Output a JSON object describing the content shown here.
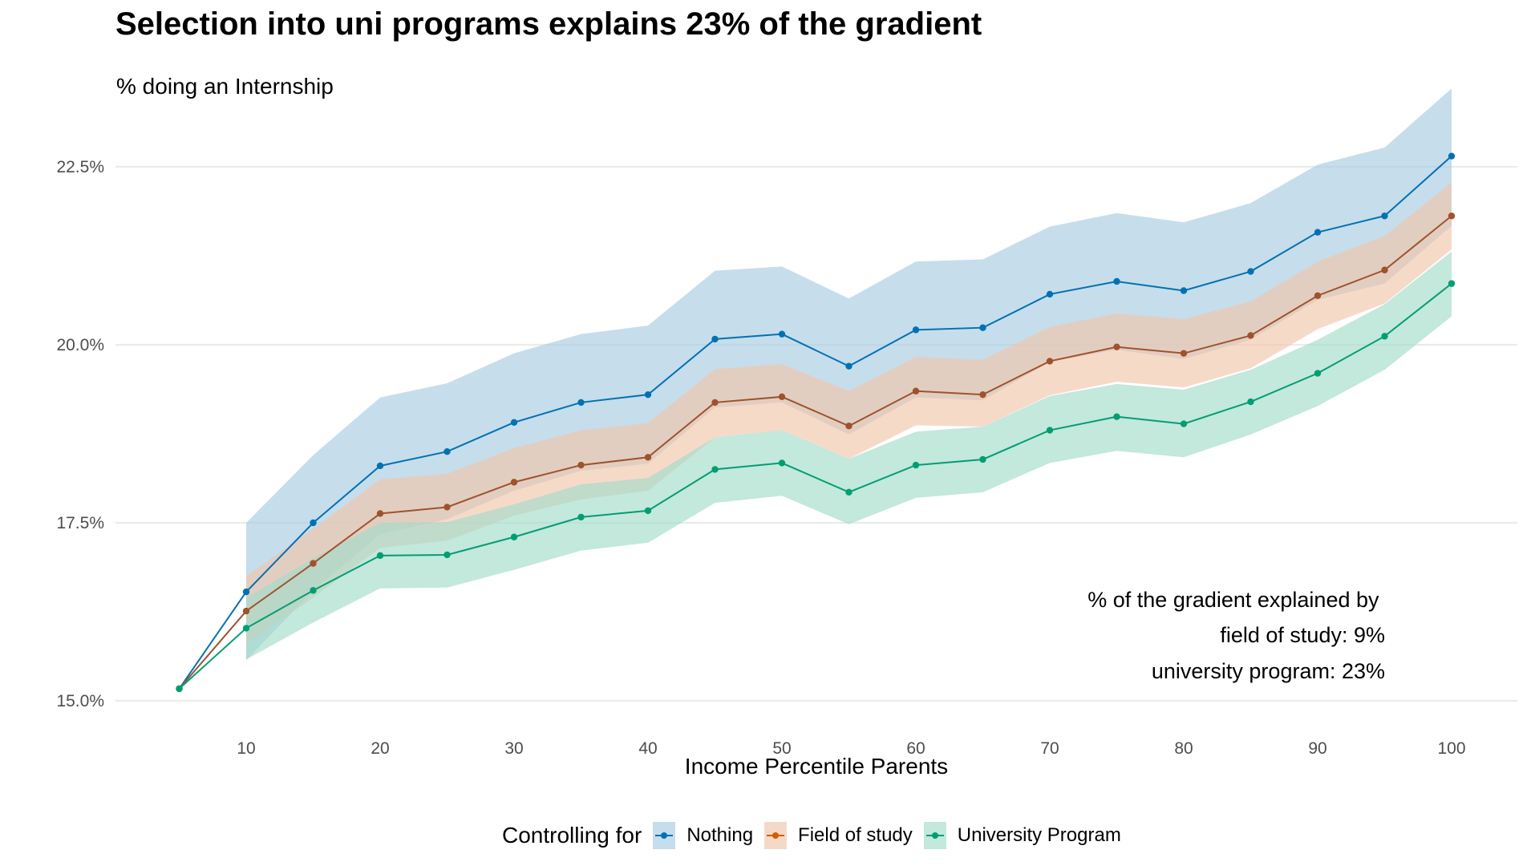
{
  "header": {
    "title": "Selection into uni programs explains 23% of the gradient",
    "subtitle": "% doing an Internship"
  },
  "annotation": {
    "lines": [
      "% of the gradient explained by ",
      "field of study: 9%",
      "university program: 23%"
    ]
  },
  "legend": {
    "title": "Controlling for",
    "items": [
      {
        "label": "Nothing",
        "color": "#0072B2",
        "fill": "#c5dded"
      },
      {
        "label": "Field of study",
        "color": "#D55E00",
        "fill": "#f5d9c8"
      },
      {
        "label": "University Program",
        "color": "#009E73",
        "fill": "#c3e8dc"
      }
    ]
  },
  "chart_data": {
    "type": "line",
    "title": "Selection into uni programs explains 23% of the gradient",
    "subtitle": "% doing an Internship",
    "xlabel": "Income Percentile Parents",
    "ylabel": "",
    "x": [
      5,
      10,
      15,
      20,
      25,
      30,
      35,
      40,
      45,
      50,
      55,
      60,
      65,
      70,
      75,
      80,
      85,
      90,
      95,
      100
    ],
    "xticks": [
      10,
      20,
      30,
      40,
      50,
      60,
      70,
      80,
      90,
      100
    ],
    "xtick_labels": [
      "10",
      "20",
      "30",
      "40",
      "50",
      "60",
      "70",
      "80",
      "90",
      "100"
    ],
    "yticks": [
      15.0,
      17.5,
      20.0,
      22.5
    ],
    "ytick_labels": [
      "15.0%",
      "17.5%",
      "20.0%",
      "22.5%"
    ],
    "xlim": [
      0.5,
      104.5
    ],
    "ylim": [
      14.85,
      23.75
    ],
    "grid": "horizontal-major",
    "legend_position": "bottom",
    "legend_title": "Controlling for",
    "series": [
      {
        "name": "Nothing",
        "color": "#0072B2",
        "fill": "#a7cbe2",
        "values": [
          15.17,
          16.53,
          17.5,
          18.3,
          18.5,
          18.91,
          19.19,
          19.3,
          20.08,
          20.15,
          19.7,
          20.21,
          20.24,
          20.71,
          20.89,
          20.76,
          21.03,
          21.58,
          21.81,
          22.65
        ],
        "ci_x": [
          10,
          15,
          20,
          25,
          30,
          35,
          40,
          45,
          50,
          55,
          60,
          65,
          70,
          75,
          80,
          85,
          90,
          95,
          100
        ],
        "ci_upper": [
          17.5,
          18.45,
          19.26,
          19.46,
          19.88,
          20.15,
          20.27,
          21.04,
          21.1,
          20.65,
          21.17,
          21.2,
          21.66,
          21.85,
          21.72,
          21.99,
          22.53,
          22.77,
          23.6
        ],
        "ci_lower": [
          15.57,
          16.55,
          17.34,
          17.55,
          17.95,
          18.23,
          18.33,
          19.12,
          19.19,
          18.74,
          19.26,
          19.22,
          19.76,
          19.93,
          19.8,
          20.07,
          20.63,
          20.86,
          21.67
        ]
      },
      {
        "name": "Field of study",
        "color": "#A0522D",
        "fill": "#f1c6ab",
        "values": [
          15.17,
          16.26,
          16.93,
          17.63,
          17.72,
          18.07,
          18.31,
          18.42,
          19.19,
          19.27,
          18.86,
          19.35,
          19.3,
          19.77,
          19.97,
          19.88,
          20.13,
          20.69,
          21.05,
          21.81
        ],
        "ci_x": [
          10,
          15,
          20,
          25,
          30,
          35,
          40,
          45,
          50,
          55,
          60,
          65,
          70,
          75,
          80,
          85,
          90,
          95,
          100
        ],
        "ci_upper": [
          16.75,
          17.42,
          18.11,
          18.19,
          18.55,
          18.8,
          18.9,
          19.66,
          19.73,
          19.35,
          19.83,
          19.79,
          20.25,
          20.44,
          20.36,
          20.61,
          21.17,
          21.53,
          22.28
        ],
        "ci_lower": [
          15.8,
          16.45,
          17.15,
          17.25,
          17.6,
          17.83,
          17.95,
          18.7,
          18.8,
          18.4,
          18.87,
          18.85,
          19.29,
          19.48,
          19.4,
          19.67,
          20.22,
          20.58,
          21.34
        ]
      },
      {
        "name": "University Program",
        "color": "#009E73",
        "fill": "#a3dcc9",
        "values": [
          15.17,
          16.02,
          16.55,
          17.04,
          17.05,
          17.3,
          17.58,
          17.67,
          18.25,
          18.34,
          17.93,
          18.31,
          18.39,
          18.8,
          18.99,
          18.89,
          19.2,
          19.6,
          20.12,
          20.86
        ],
        "ci_x": [
          10,
          15,
          20,
          25,
          30,
          35,
          40,
          45,
          50,
          55,
          60,
          65,
          70,
          75,
          80,
          85,
          90,
          95,
          100
        ],
        "ci_upper": [
          16.45,
          17.0,
          17.5,
          17.51,
          17.76,
          18.04,
          18.13,
          18.7,
          18.8,
          18.4,
          18.78,
          18.85,
          19.28,
          19.45,
          19.37,
          19.65,
          20.07,
          20.57,
          21.31
        ],
        "ci_lower": [
          15.58,
          16.1,
          16.58,
          16.59,
          16.84,
          17.11,
          17.22,
          17.78,
          17.88,
          17.48,
          17.85,
          17.93,
          18.34,
          18.51,
          18.42,
          18.74,
          19.14,
          19.65,
          20.4
        ]
      }
    ],
    "annotations": [
      "% of the gradient explained by",
      "field of study: 9%",
      "university program: 23%"
    ]
  }
}
